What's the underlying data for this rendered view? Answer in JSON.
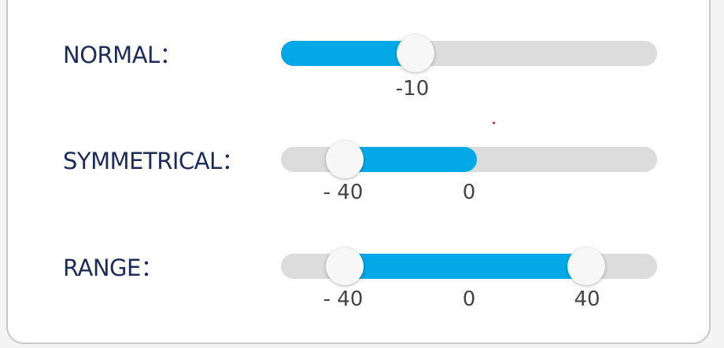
{
  "sliders": [
    {
      "label": "NORMAL：",
      "tick_labels": [
        "-10"
      ]
    },
    {
      "label": "SYMMETRICAL：",
      "tick_labels": [
        "- 40",
        "0"
      ]
    },
    {
      "label": "RANGE：",
      "tick_labels": [
        "- 40",
        "0",
        "40"
      ]
    }
  ]
}
